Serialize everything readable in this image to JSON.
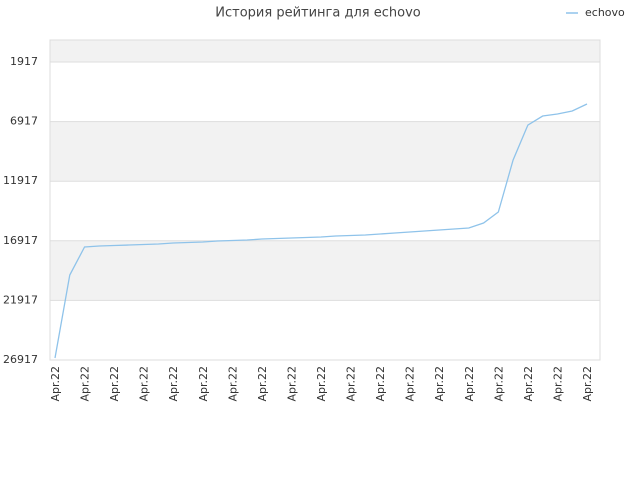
{
  "chart_data": {
    "type": "line",
    "title": "История рейтинга для echovo",
    "categories": [
      "Apr.22",
      null,
      "Apr.22",
      null,
      "Apr.22",
      null,
      "Apr.22",
      null,
      "Apr.22",
      null,
      "Apr.22",
      null,
      "Apr.22",
      null,
      "Apr.22",
      null,
      "Apr.22",
      null,
      "Apr.22",
      null,
      "Apr.22",
      null,
      "Apr.22",
      null,
      "Apr.22",
      null,
      "Apr.22",
      null,
      "Apr.22",
      null,
      "Apr.22",
      null,
      "Apr.22",
      null,
      "Apr.22",
      null,
      "Apr.22"
    ],
    "series": [
      {
        "name": "echovo",
        "color": "#8fc3ea",
        "values": [
          26750,
          19787,
          17437,
          17353,
          17311,
          17270,
          17228,
          17186,
          17102,
          17060,
          17018,
          16934,
          16892,
          16850,
          16766,
          16724,
          16682,
          16640,
          16598,
          16514,
          16472,
          16430,
          16346,
          16263,
          16179,
          16095,
          16011,
          15927,
          15843,
          15424,
          14500,
          10138,
          7202,
          6447,
          6279,
          6028,
          5440
        ]
      }
    ],
    "ylim": [
      26917,
      70
    ],
    "yticks": [
      26917,
      21917,
      16917,
      11917,
      6917,
      1917
    ],
    "grid": true,
    "legend": "top-right"
  }
}
